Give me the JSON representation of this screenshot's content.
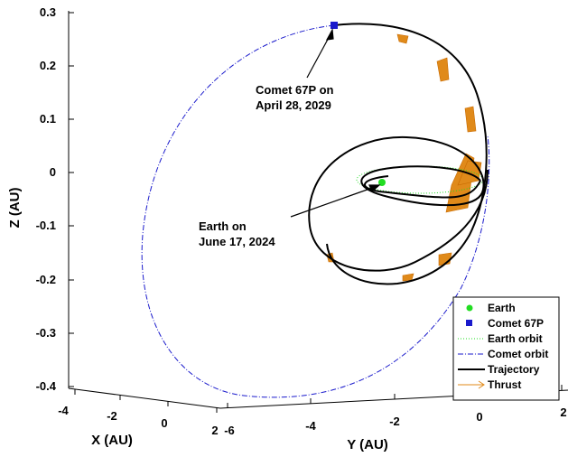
{
  "chart_data": {
    "type": "line",
    "axes": {
      "z": {
        "label": "Z (AU)",
        "ticks": [
          "0.3",
          "0.2",
          "0.1",
          "0",
          "-0.1",
          "-0.2",
          "-0.3",
          "-0.4"
        ]
      },
      "x": {
        "label": "X (AU)",
        "ticks": [
          "-4",
          "-2",
          "0",
          "2"
        ]
      },
      "y": {
        "label": "Y (AU)",
        "ticks": [
          "-6",
          "-4",
          "-2",
          "0",
          "2"
        ]
      }
    },
    "annotations": [
      {
        "lines": [
          "Comet 67P on",
          "April 28, 2029"
        ]
      },
      {
        "lines": [
          "Earth on",
          "June 17, 2024"
        ]
      }
    ],
    "legend": {
      "position": "bottom-right",
      "entries": [
        {
          "name": "Earth",
          "marker": "circle",
          "color": "#22dd22"
        },
        {
          "name": "Comet 67P",
          "marker": "square",
          "color": "#1a1acc"
        },
        {
          "name": "Earth orbit",
          "style": "dotted",
          "color": "#22dd22"
        },
        {
          "name": "Comet orbit",
          "style": "dash-dot",
          "color": "#1a1acc"
        },
        {
          "name": "Trajectory",
          "style": "solid",
          "color": "#000000"
        },
        {
          "name": "Thrust",
          "style": "arrow",
          "color": "#e08a1a"
        }
      ]
    },
    "grid": false
  }
}
